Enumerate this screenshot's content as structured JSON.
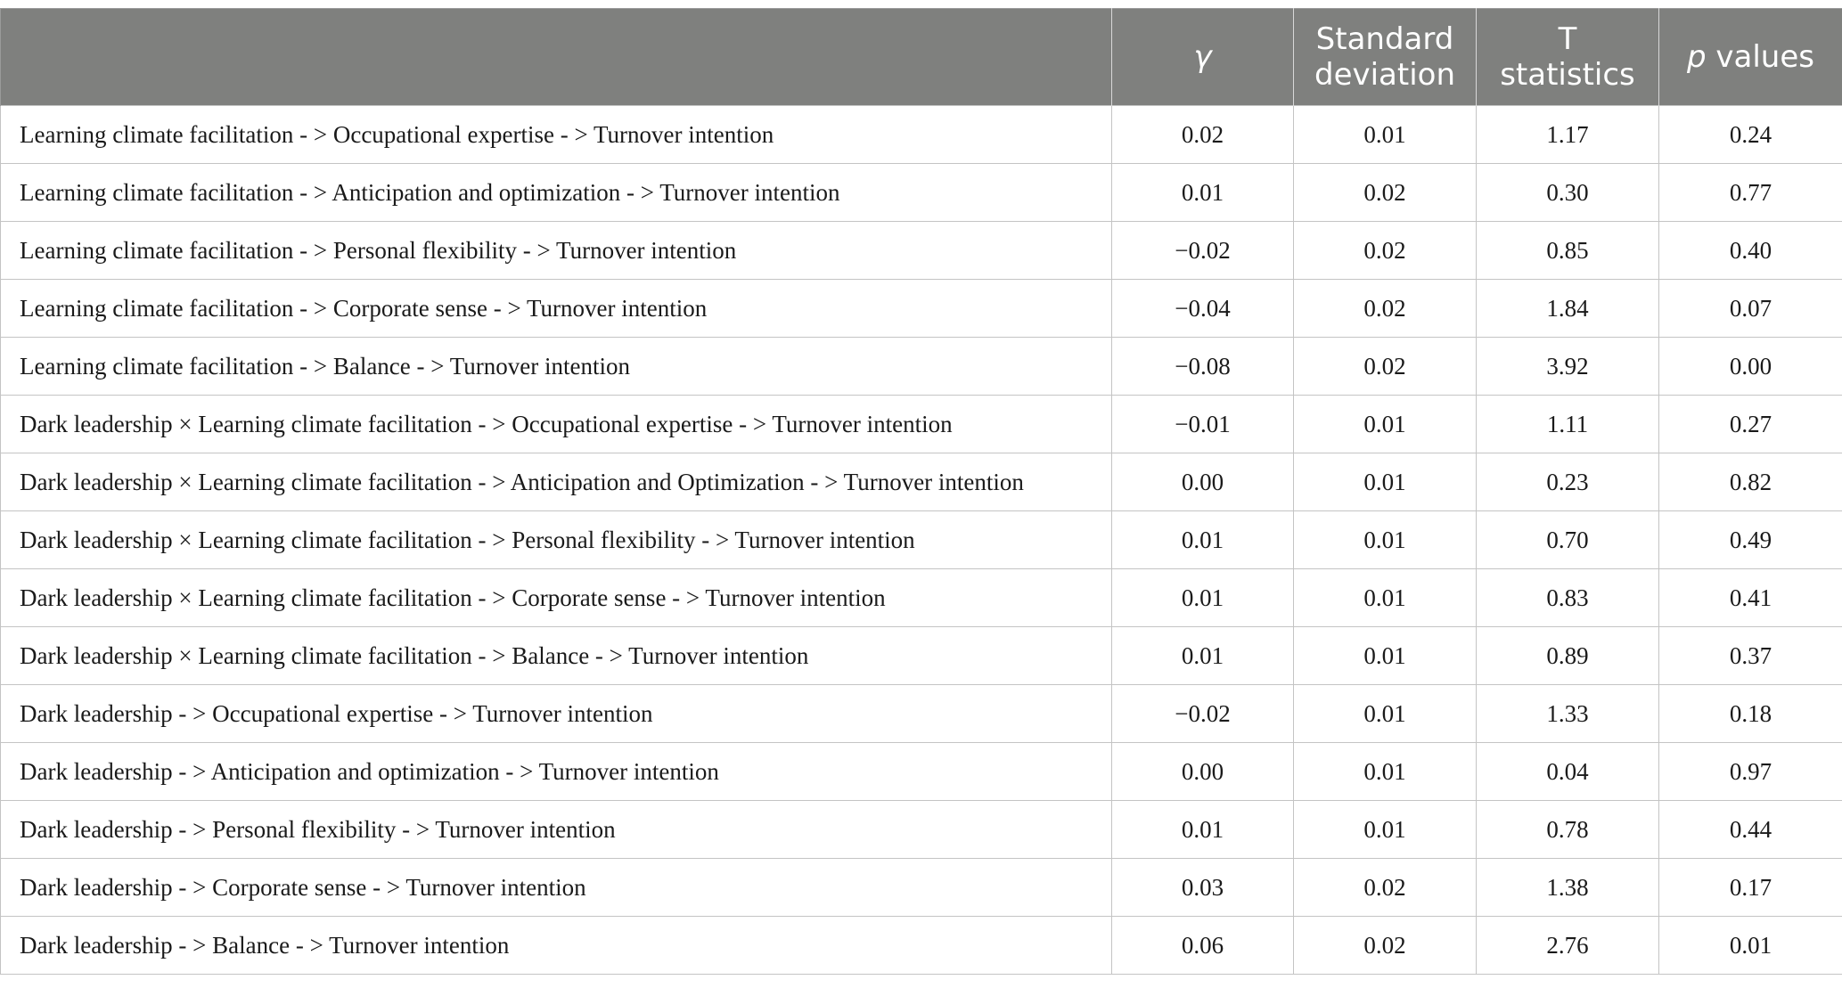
{
  "table": {
    "headers": {
      "path": "",
      "gamma": "γ",
      "sd_line1": "Standard",
      "sd_line2": "deviation",
      "t_line1": "T",
      "t_line2": "statistics",
      "p_italic": "p",
      "p_rest": " values"
    },
    "rows": [
      {
        "path": "Learning climate facilitation - > Occupational expertise - > Turnover intention",
        "gamma": "0.02",
        "sd": "0.01",
        "t": "1.17",
        "p": "0.24"
      },
      {
        "path": "Learning climate facilitation - > Anticipation and optimization - > Turnover intention",
        "gamma": "0.01",
        "sd": "0.02",
        "t": "0.30",
        "p": "0.77"
      },
      {
        "path": "Learning climate facilitation - > Personal flexibility - > Turnover intention",
        "gamma": "−0.02",
        "sd": "0.02",
        "t": "0.85",
        "p": "0.40"
      },
      {
        "path": "Learning climate facilitation - > Corporate sense - > Turnover intention",
        "gamma": "−0.04",
        "sd": "0.02",
        "t": "1.84",
        "p": "0.07"
      },
      {
        "path": "Learning climate facilitation - > Balance - > Turnover intention",
        "gamma": "−0.08",
        "sd": "0.02",
        "t": "3.92",
        "p": "0.00"
      },
      {
        "path": "Dark leadership × Learning climate facilitation - > Occupational expertise - > Turnover intention",
        "gamma": "−0.01",
        "sd": "0.01",
        "t": "1.11",
        "p": "0.27"
      },
      {
        "path": "Dark leadership × Learning climate facilitation - > Anticipation and Optimization - > Turnover intention",
        "gamma": "0.00",
        "sd": "0.01",
        "t": "0.23",
        "p": "0.82"
      },
      {
        "path": "Dark leadership × Learning climate facilitation - > Personal flexibility - > Turnover intention",
        "gamma": "0.01",
        "sd": "0.01",
        "t": "0.70",
        "p": "0.49"
      },
      {
        "path": "Dark leadership × Learning climate facilitation - > Corporate sense - > Turnover intention",
        "gamma": "0.01",
        "sd": "0.01",
        "t": "0.83",
        "p": "0.41"
      },
      {
        "path": "Dark leadership × Learning climate facilitation - > Balance - > Turnover intention",
        "gamma": "0.01",
        "sd": "0.01",
        "t": "0.89",
        "p": "0.37"
      },
      {
        "path": "Dark leadership - > Occupational expertise - > Turnover intention",
        "gamma": "−0.02",
        "sd": "0.01",
        "t": "1.33",
        "p": "0.18"
      },
      {
        "path": "Dark leadership - > Anticipation and optimization - > Turnover intention",
        "gamma": "0.00",
        "sd": "0.01",
        "t": "0.04",
        "p": "0.97"
      },
      {
        "path": "Dark leadership - > Personal flexibility - > Turnover intention",
        "gamma": "0.01",
        "sd": "0.01",
        "t": "0.78",
        "p": "0.44"
      },
      {
        "path": "Dark leadership - > Corporate sense - > Turnover intention",
        "gamma": "0.03",
        "sd": "0.02",
        "t": "1.38",
        "p": "0.17"
      },
      {
        "path": "Dark leadership - > Balance - > Turnover intention",
        "gamma": "0.06",
        "sd": "0.02",
        "t": "2.76",
        "p": "0.01"
      }
    ]
  },
  "colors": {
    "header_bg": "#7f807e",
    "header_text": "#ffffff",
    "body_text": "#1a1a1a",
    "grid": "#c4c4c4"
  }
}
